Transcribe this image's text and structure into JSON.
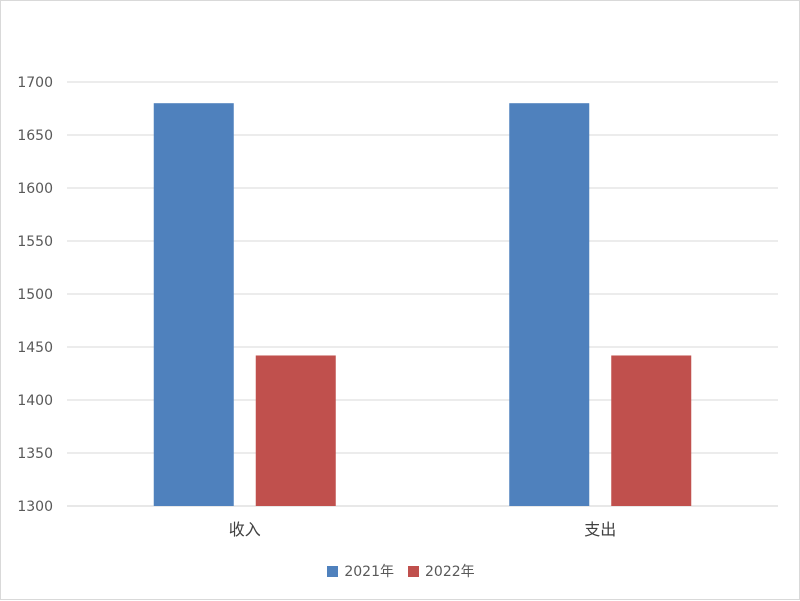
{
  "chart_data": {
    "type": "bar",
    "categories": [
      "收入",
      "支出"
    ],
    "series": [
      {
        "name": "2021年",
        "values": [
          1680,
          1680
        ],
        "color": "#4f81bd"
      },
      {
        "name": "2022年",
        "values": [
          1442,
          1442
        ],
        "color": "#c0504d"
      }
    ],
    "y_ticks": [
      "1300",
      "1350",
      "1400",
      "1450",
      "1500",
      "1550",
      "1600",
      "1650",
      "1700"
    ],
    "ylim": [
      1300,
      1700
    ],
    "grid": true,
    "legend_position": "bottom",
    "gridline_color": "#d9d9d9",
    "title": "",
    "xlabel": "",
    "ylabel": ""
  }
}
